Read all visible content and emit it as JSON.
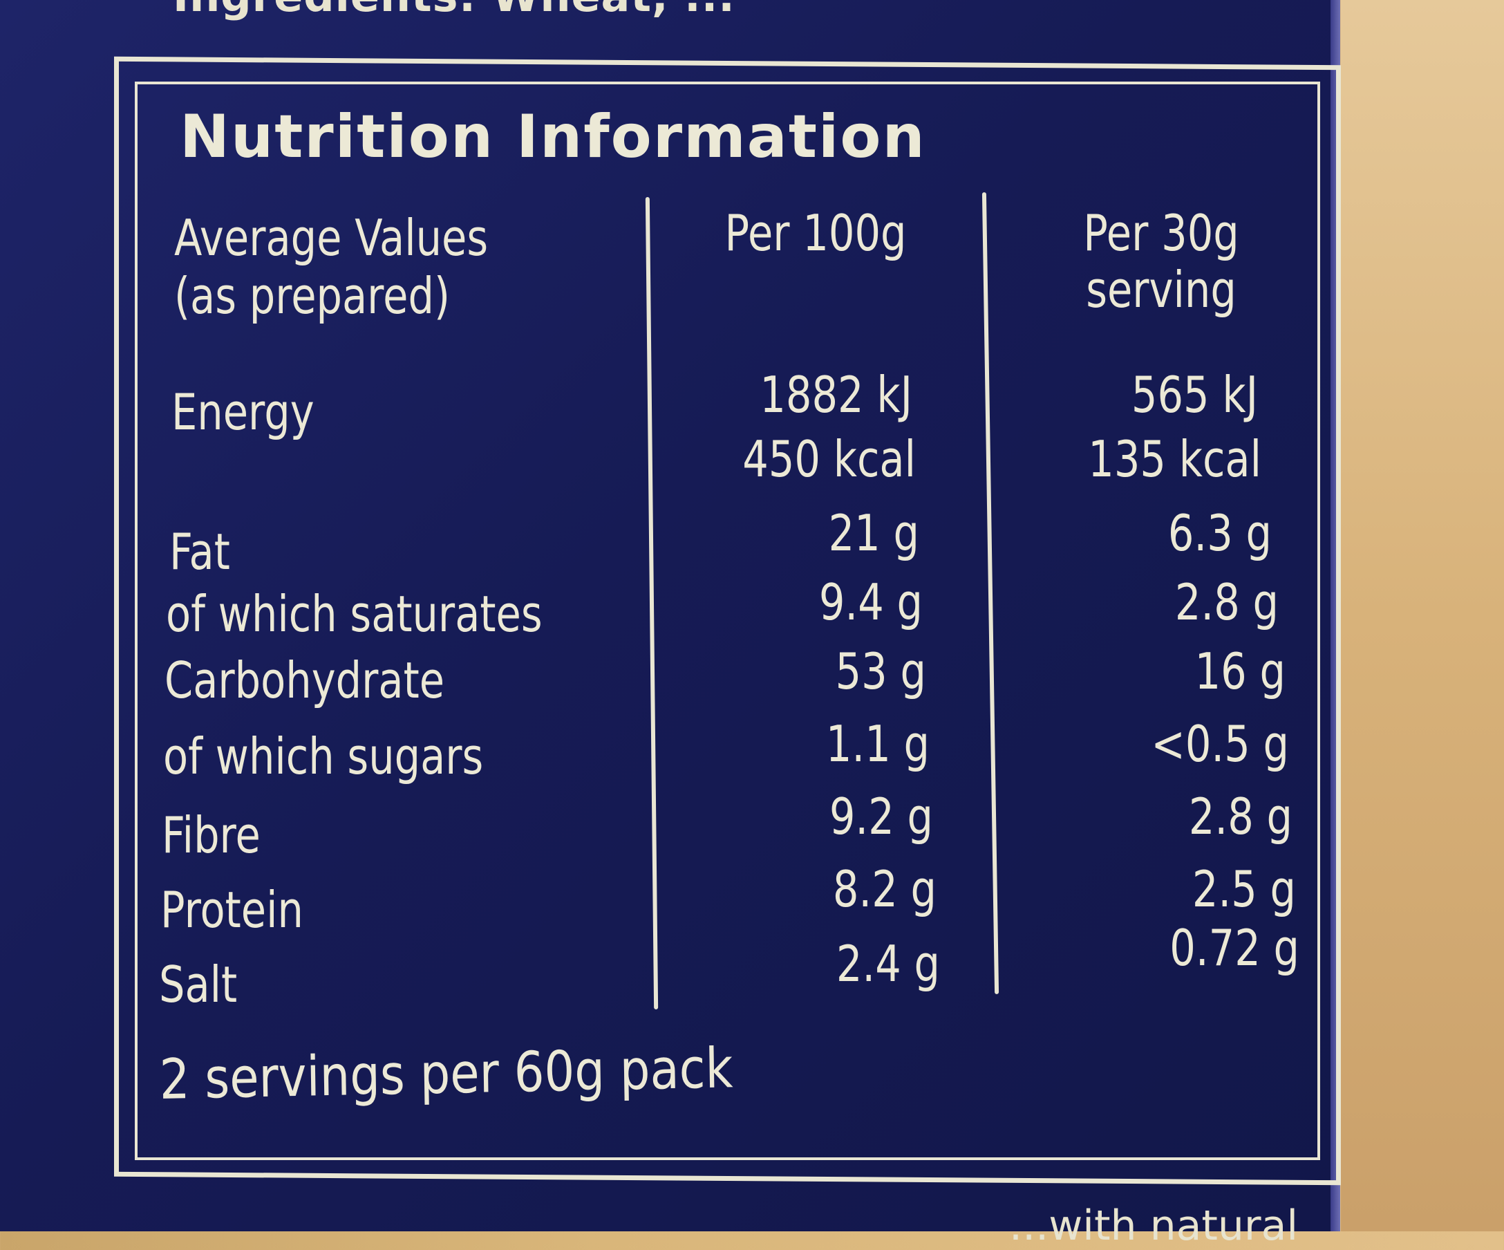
{
  "top_text": "Ingredients: Wheat, ...",
  "title": "Nutrition Information",
  "header": {
    "label_line1": "Average Values",
    "label_line2": "(as prepared)",
    "col1": "Per 100g",
    "col2_line1": "Per 30g",
    "col2_line2": "serving"
  },
  "energy": {
    "label": "Energy",
    "per100_kj": "1882 kJ",
    "per100_kcal": "450 kcal",
    "perserving_kj": "565 kJ",
    "perserving_kcal": "135 kcal"
  },
  "rows": [
    {
      "label": "Fat",
      "per100": "21 g",
      "perserving": "6.3 g"
    },
    {
      "label": "of which saturates",
      "per100": "9.4 g",
      "perserving": "2.8 g"
    },
    {
      "label": "Carbohydrate",
      "per100": "53 g",
      "perserving": "16 g"
    },
    {
      "label": "of which sugars",
      "per100": "1.1 g",
      "perserving": "<0.5 g"
    },
    {
      "label": "Fibre",
      "per100": "9.2 g",
      "perserving": "2.8 g"
    },
    {
      "label": "Protein",
      "per100": "8.2 g",
      "perserving": "2.5 g"
    },
    {
      "label": "Salt",
      "per100": "2.4 g",
      "perserving": "0.72 g"
    }
  ],
  "footer": "2 servings per 60g pack",
  "bottom_text": "...with natural",
  "colors": {
    "package": "#161b55",
    "ink": "#ece9d6",
    "wood": "#d9b67a"
  }
}
